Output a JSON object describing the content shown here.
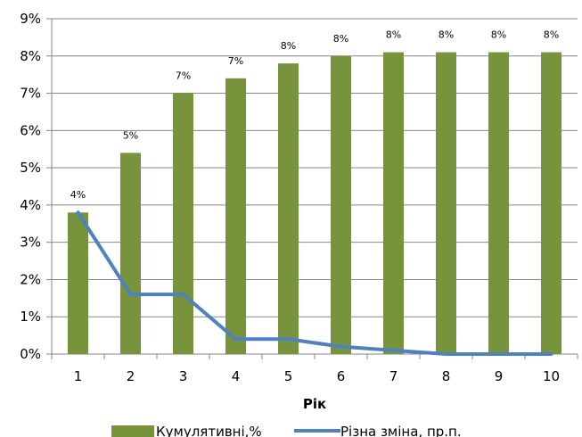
{
  "chart_data": {
    "type": "bar",
    "categories": [
      "1",
      "2",
      "3",
      "4",
      "5",
      "6",
      "7",
      "8",
      "9",
      "10"
    ],
    "series": [
      {
        "name": "Кумулятивні,%",
        "type": "bar",
        "values": [
          3.8,
          5.4,
          7.0,
          7.4,
          7.8,
          8.0,
          8.1,
          8.1,
          8.1,
          8.1
        ],
        "labels": [
          "4%",
          "5%",
          "7%",
          "7%",
          "8%",
          "8%",
          "8%",
          "8%",
          "8%",
          "8%"
        ],
        "color": "#77933c"
      },
      {
        "name": "Різна зміна, пр.п.",
        "type": "line",
        "values": [
          3.8,
          1.6,
          1.6,
          0.4,
          0.4,
          0.2,
          0.1,
          0.0,
          0.0,
          0.0
        ],
        "color": "#4f81bd"
      }
    ],
    "xlabel": "Рік",
    "ylabel": "",
    "ylim": [
      0,
      9
    ],
    "yticks": [
      "0%",
      "1%",
      "2%",
      "3%",
      "4%",
      "5%",
      "6%",
      "7%",
      "8%",
      "9%"
    ],
    "grid": true,
    "legend": "bottom"
  }
}
